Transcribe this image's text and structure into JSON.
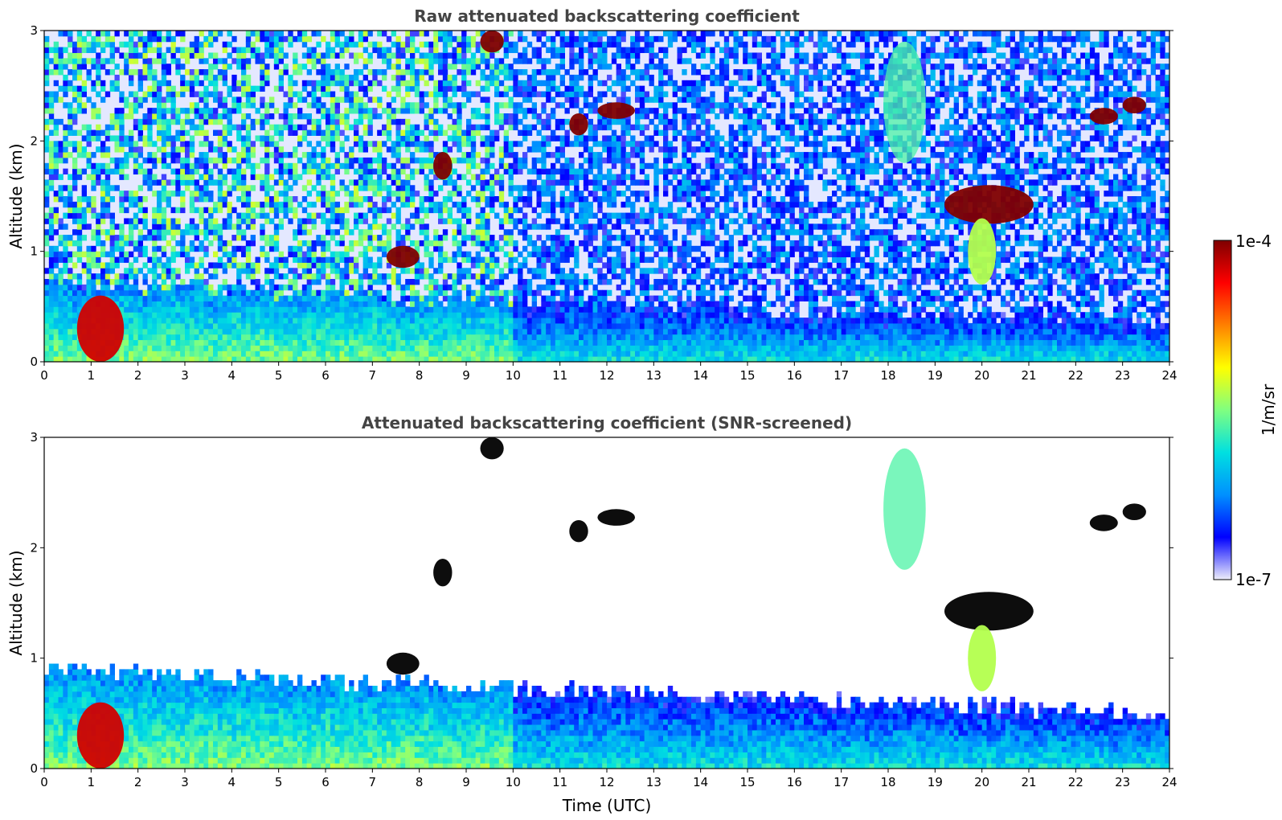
{
  "chart_data": [
    {
      "type": "heatmap",
      "title": "Raw attenuated backscattering coefficient",
      "xlabel": "",
      "ylabel": "Altitude (km)",
      "xlim": [
        0,
        24
      ],
      "ylim": [
        0,
        3
      ],
      "x_ticks": [
        "0",
        "1",
        "2",
        "3",
        "4",
        "5",
        "6",
        "7",
        "8",
        "9",
        "10",
        "11",
        "12",
        "13",
        "14",
        "15",
        "16",
        "17",
        "18",
        "19",
        "20",
        "21",
        "22",
        "23",
        "24"
      ],
      "y_ticks": [
        "0",
        "1",
        "2",
        "3"
      ],
      "screened": false,
      "features": [
        {
          "kind": "boundary_layer",
          "x": [
            0,
            24
          ],
          "y_top_start_km": 0.7,
          "y_top_end_km": 0.35
        },
        {
          "kind": "dense_low_aerosol",
          "x": [
            0.7,
            1.7
          ],
          "y": [
            0.0,
            0.6
          ]
        },
        {
          "kind": "cloud",
          "x": [
            7.3,
            8.0
          ],
          "y": [
            0.85,
            1.05
          ]
        },
        {
          "kind": "cloud",
          "x": [
            8.3,
            8.7
          ],
          "y": [
            1.65,
            1.9
          ]
        },
        {
          "kind": "cloud",
          "x": [
            11.2,
            11.6
          ],
          "y": [
            2.05,
            2.25
          ]
        },
        {
          "kind": "cloud",
          "x": [
            11.8,
            12.6
          ],
          "y": [
            2.2,
            2.35
          ]
        },
        {
          "kind": "cloud",
          "x": [
            9.3,
            9.8
          ],
          "y": [
            2.8,
            3.0
          ]
        },
        {
          "kind": "cloud",
          "x": [
            19.2,
            21.1
          ],
          "y": [
            1.25,
            1.6
          ]
        },
        {
          "kind": "virga",
          "x": [
            19.7,
            20.3
          ],
          "y": [
            0.7,
            1.3
          ]
        },
        {
          "kind": "cloud",
          "x": [
            22.3,
            22.9
          ],
          "y": [
            2.15,
            2.3
          ]
        },
        {
          "kind": "cloud",
          "x": [
            23.0,
            23.5
          ],
          "y": [
            2.25,
            2.4
          ]
        },
        {
          "kind": "aerosol_plume",
          "x": [
            17.9,
            18.8
          ],
          "y": [
            1.8,
            2.9
          ]
        }
      ]
    },
    {
      "type": "heatmap",
      "title": "Attenuated backscattering coefficient (SNR-screened)",
      "xlabel": "Time (UTC)",
      "ylabel": "Altitude (km)",
      "xlim": [
        0,
        24
      ],
      "ylim": [
        0,
        3
      ],
      "x_ticks": [
        "0",
        "1",
        "2",
        "3",
        "4",
        "5",
        "6",
        "7",
        "8",
        "9",
        "10",
        "11",
        "12",
        "13",
        "14",
        "15",
        "16",
        "17",
        "18",
        "19",
        "20",
        "21",
        "22",
        "23",
        "24"
      ],
      "y_ticks": [
        "0",
        "1",
        "2",
        "3"
      ],
      "screened": true,
      "features": [
        {
          "kind": "boundary_layer",
          "x": [
            0,
            24
          ],
          "y_top_start_km": 0.9,
          "y_top_end_km": 0.5
        },
        {
          "kind": "dense_low_aerosol",
          "x": [
            0.7,
            1.7
          ],
          "y": [
            0.0,
            0.6
          ]
        },
        {
          "kind": "cloud",
          "x": [
            7.3,
            8.0
          ],
          "y": [
            0.85,
            1.05
          ]
        },
        {
          "kind": "cloud",
          "x": [
            8.3,
            8.7
          ],
          "y": [
            1.65,
            1.9
          ]
        },
        {
          "kind": "cloud",
          "x": [
            11.2,
            11.6
          ],
          "y": [
            2.05,
            2.25
          ]
        },
        {
          "kind": "cloud",
          "x": [
            11.8,
            12.6
          ],
          "y": [
            2.2,
            2.35
          ]
        },
        {
          "kind": "cloud",
          "x": [
            9.3,
            9.8
          ],
          "y": [
            2.8,
            3.0
          ]
        },
        {
          "kind": "cloud",
          "x": [
            19.2,
            21.1
          ],
          "y": [
            1.25,
            1.6
          ]
        },
        {
          "kind": "virga",
          "x": [
            19.7,
            20.3
          ],
          "y": [
            0.7,
            1.3
          ]
        },
        {
          "kind": "cloud",
          "x": [
            22.3,
            22.9
          ],
          "y": [
            2.15,
            2.3
          ]
        },
        {
          "kind": "cloud",
          "x": [
            23.0,
            23.5
          ],
          "y": [
            2.25,
            2.4
          ]
        },
        {
          "kind": "aerosol_plume",
          "x": [
            17.9,
            18.8
          ],
          "y": [
            1.8,
            2.9
          ]
        }
      ]
    }
  ],
  "colorbar": {
    "max_label": "1e-4",
    "min_label": "1e-7",
    "unit_label": "1/m/sr",
    "colormap": [
      "#eeeefa",
      "#0000ff",
      "#0090ff",
      "#00e0e0",
      "#80ff80",
      "#ffff00",
      "#ff8000",
      "#ff0000",
      "#7f0000"
    ],
    "clipped_color": "#000000"
  }
}
